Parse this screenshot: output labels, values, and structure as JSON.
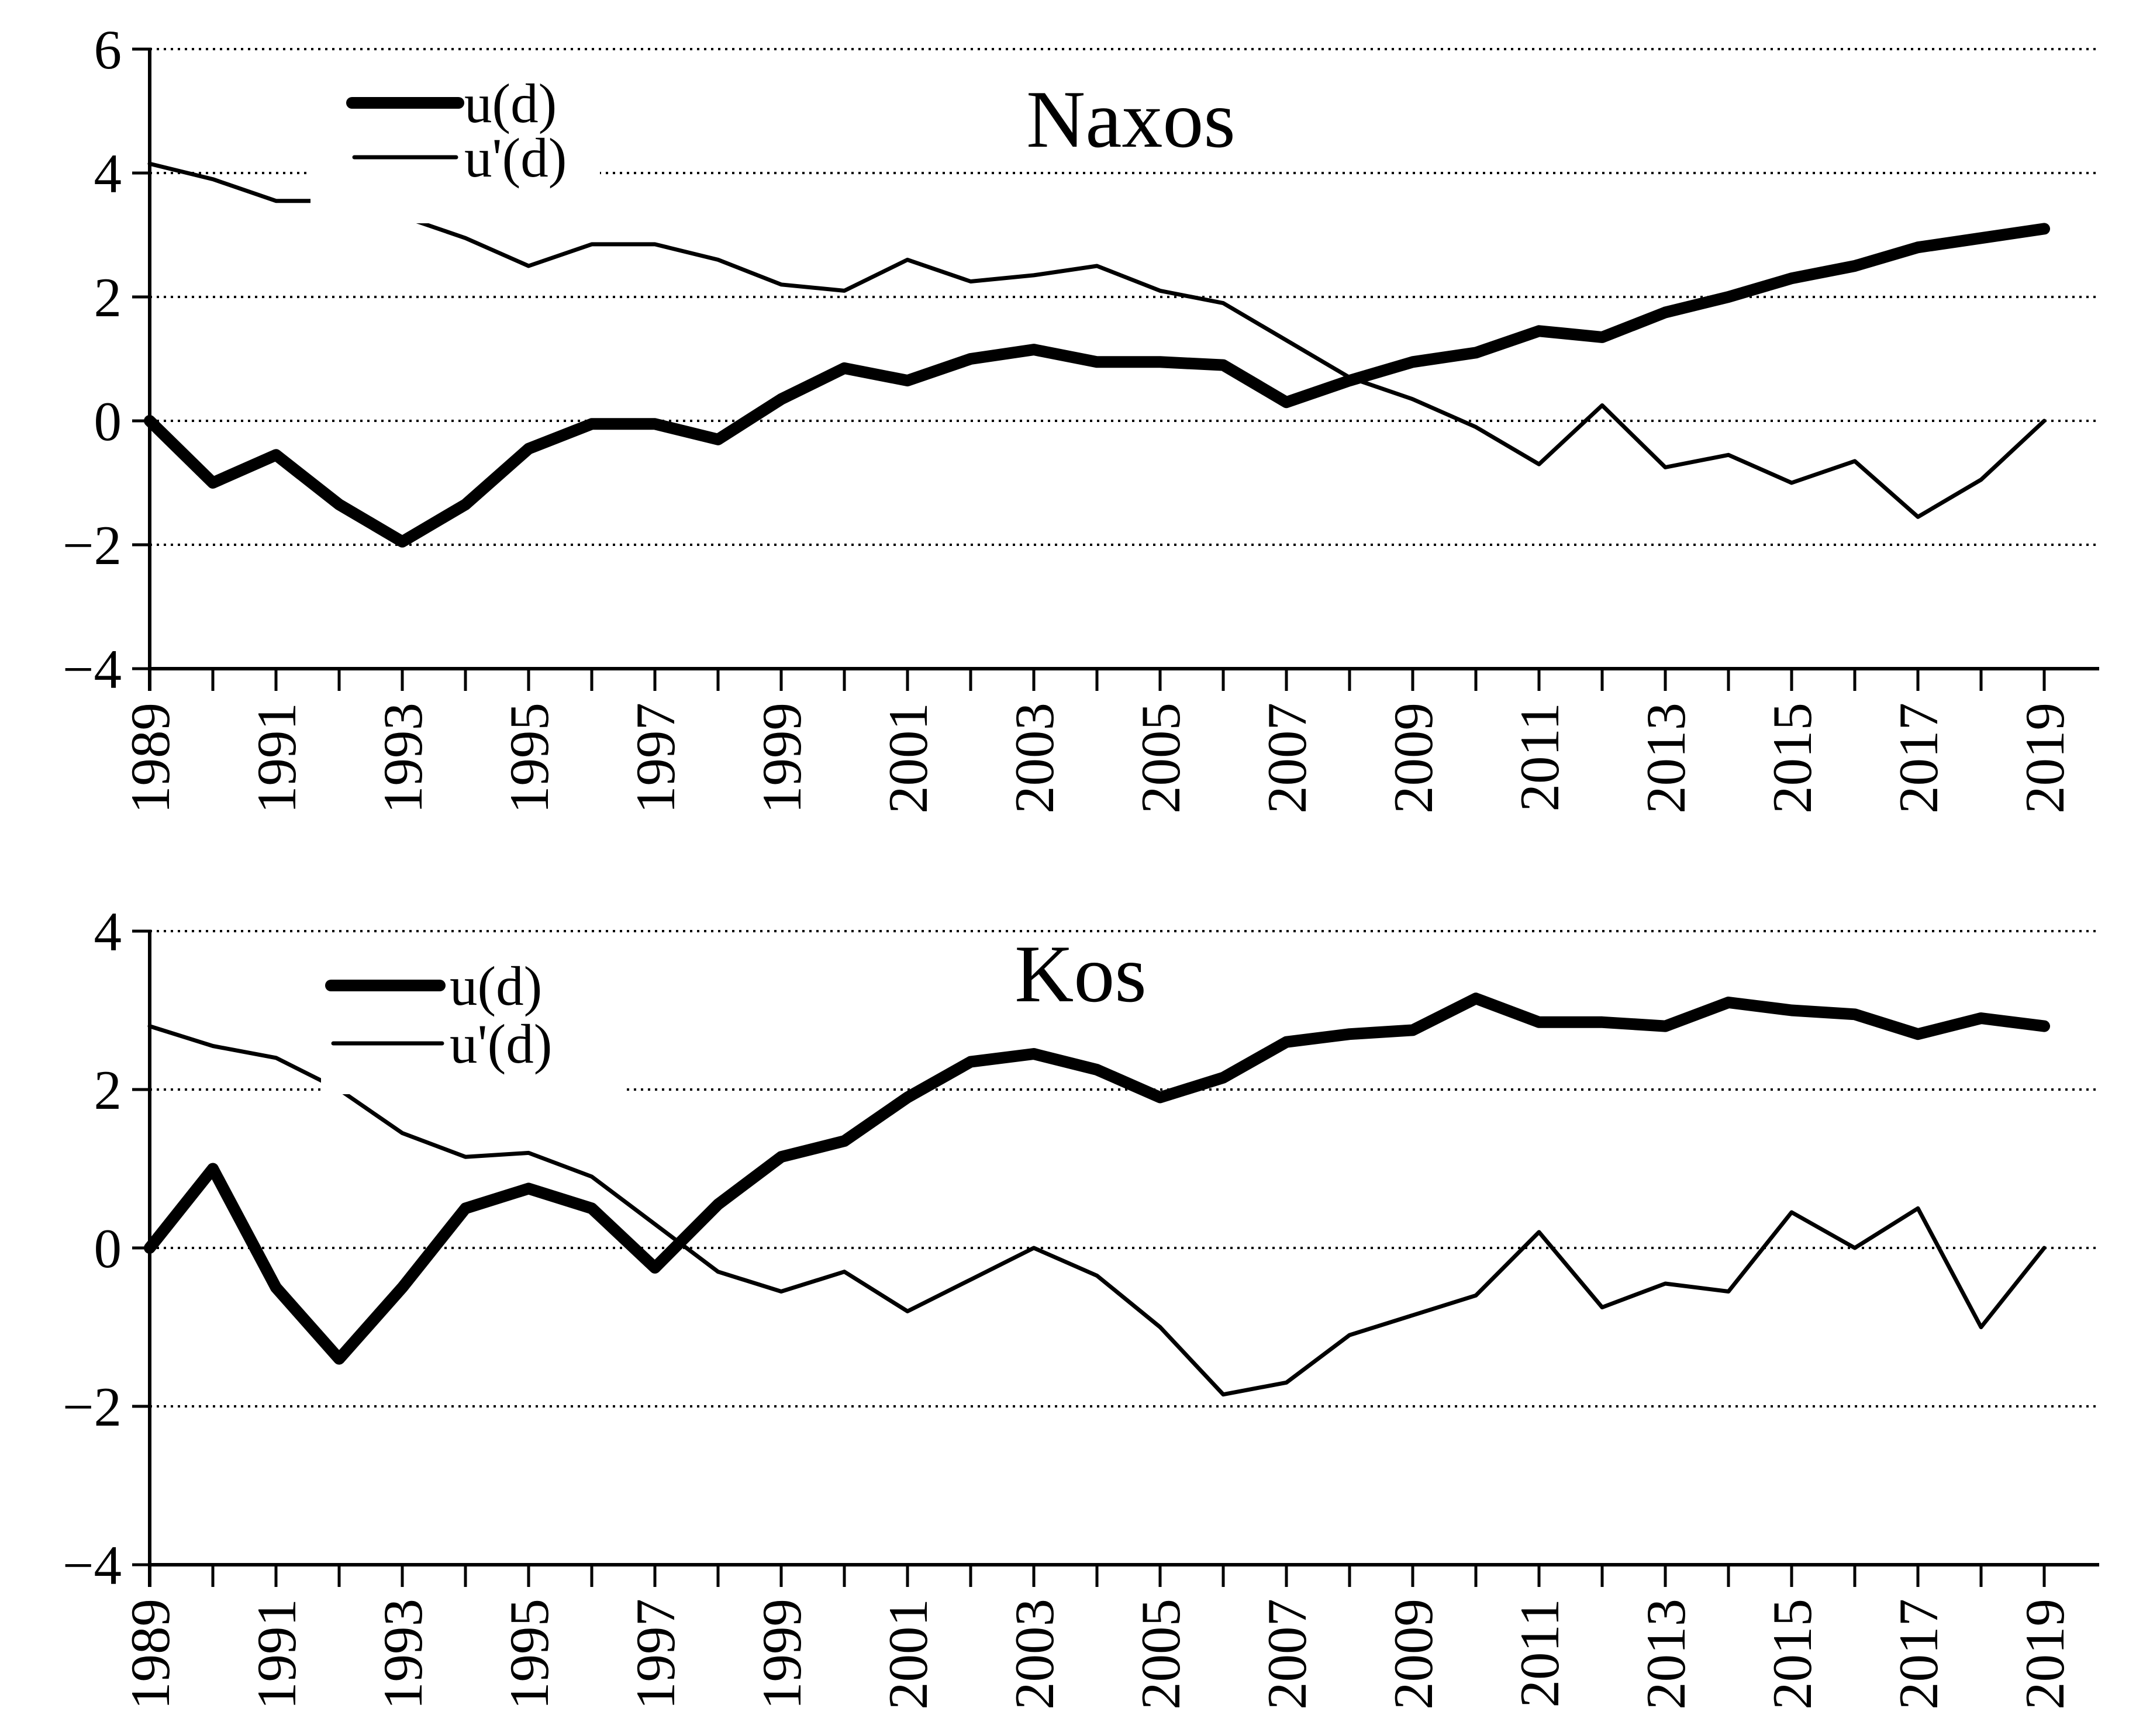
{
  "figure": {
    "background_color": "#ffffff",
    "line_color": "#000000",
    "grid_style": "horizontal dotted lines"
  },
  "chart_data": [
    {
      "type": "line",
      "title": "Naxos",
      "xlabel": "",
      "ylabel": "",
      "ylim": [
        -4,
        6
      ],
      "grid": "horizontal-dotted",
      "legend_position": "inside-top-left",
      "x": [
        1989,
        1990,
        1991,
        1992,
        1993,
        1994,
        1995,
        1996,
        1997,
        1998,
        1999,
        2000,
        2001,
        2002,
        2003,
        2004,
        2005,
        2006,
        2007,
        2008,
        2009,
        2010,
        2011,
        2012,
        2013,
        2014,
        2015,
        2016,
        2017,
        2018,
        2019
      ],
      "xtick_labels": [
        "1989",
        "1991",
        "1993",
        "1995",
        "1997",
        "1999",
        "2001",
        "2003",
        "2005",
        "2007",
        "2009",
        "2011",
        "2013",
        "2015",
        "2017",
        "2019"
      ],
      "yticks": [
        6,
        4,
        2,
        0,
        -2,
        -4
      ],
      "ytick_labels": [
        "6",
        "4",
        "2",
        "0",
        "−2",
        "−4"
      ],
      "series": [
        {
          "name": "u(d)",
          "style": "thick",
          "values": [
            0.0,
            -1.0,
            -0.55,
            -1.35,
            -1.95,
            -1.35,
            -0.45,
            -0.05,
            -0.05,
            -0.3,
            0.35,
            0.85,
            0.65,
            1.0,
            1.15,
            0.95,
            0.95,
            0.9,
            0.3,
            0.65,
            0.95,
            1.1,
            1.45,
            1.35,
            1.75,
            2.0,
            2.3,
            2.5,
            2.8,
            2.95,
            3.1
          ]
        },
        {
          "name": "u'(d)",
          "style": "thin",
          "values": [
            4.15,
            3.9,
            3.55,
            3.55,
            3.3,
            2.95,
            2.5,
            2.85,
            2.85,
            2.6,
            2.2,
            2.1,
            2.6,
            2.25,
            2.35,
            2.5,
            2.1,
            1.9,
            1.3,
            0.7,
            0.35,
            -0.1,
            -0.7,
            0.25,
            -0.75,
            -0.55,
            -1.0,
            -0.65,
            -1.55,
            -0.95,
            0.0
          ]
        }
      ]
    },
    {
      "type": "line",
      "title": "Kos",
      "xlabel": "",
      "ylabel": "",
      "ylim": [
        -4,
        4
      ],
      "grid": "horizontal-dotted",
      "legend_position": "inside-top-left",
      "x": [
        1989,
        1990,
        1991,
        1992,
        1993,
        1994,
        1995,
        1996,
        1997,
        1998,
        1999,
        2000,
        2001,
        2002,
        2003,
        2004,
        2005,
        2006,
        2007,
        2008,
        2009,
        2010,
        2011,
        2012,
        2013,
        2014,
        2015,
        2016,
        2017,
        2018,
        2019
      ],
      "xtick_labels": [
        "1989",
        "1991",
        "1993",
        "1995",
        "1997",
        "1999",
        "2001",
        "2003",
        "2005",
        "2007",
        "2009",
        "2011",
        "2013",
        "2015",
        "2017",
        "2019"
      ],
      "yticks": [
        4,
        2,
        0,
        -2,
        -4
      ],
      "ytick_labels": [
        "4",
        "2",
        "0",
        "−2",
        "−4"
      ],
      "series": [
        {
          "name": "u(d)",
          "style": "thick",
          "values": [
            0.0,
            1.0,
            -0.5,
            -1.4,
            -0.5,
            0.5,
            0.75,
            0.5,
            -0.25,
            0.55,
            1.15,
            1.35,
            1.9,
            2.35,
            2.45,
            2.25,
            1.9,
            2.15,
            2.6,
            2.7,
            2.75,
            3.15,
            2.85,
            2.85,
            2.8,
            3.1,
            3.0,
            2.95,
            2.7,
            2.9,
            2.8
          ]
        },
        {
          "name": "u'(d)",
          "style": "thin",
          "values": [
            2.8,
            2.55,
            2.4,
            2.0,
            1.45,
            1.15,
            1.2,
            0.9,
            0.3,
            -0.3,
            -0.55,
            -0.3,
            -0.8,
            -0.4,
            0.0,
            -0.35,
            -1.0,
            -1.85,
            -1.7,
            -1.1,
            -0.85,
            -0.6,
            0.2,
            -0.75,
            -0.45,
            -0.55,
            0.45,
            0.0,
            0.5,
            -1.0,
            0.0
          ]
        }
      ]
    }
  ]
}
